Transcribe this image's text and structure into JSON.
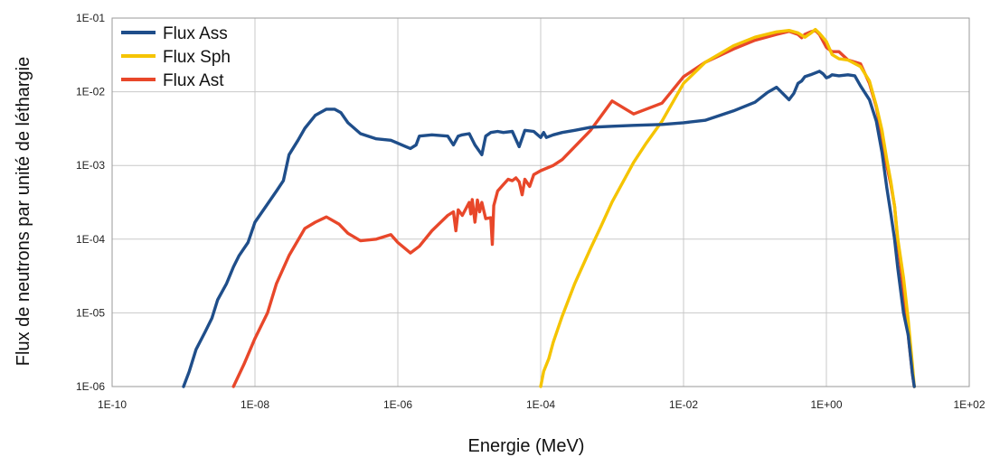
{
  "chart_data": {
    "type": "line",
    "title": "",
    "xlabel": "Energie (MeV)",
    "ylabel": "Flux de neutrons par unité de léthargie",
    "x_scale": "log",
    "y_scale": "log",
    "xlim": [
      1e-10,
      100
    ],
    "ylim": [
      1e-06,
      0.1
    ],
    "grid": true,
    "legend_position": "top-left",
    "x_ticks": [
      {
        "value": 1e-10,
        "label": "1E-10"
      },
      {
        "value": 1e-08,
        "label": "1E-08"
      },
      {
        "value": 1e-06,
        "label": "1E-06"
      },
      {
        "value": 0.0001,
        "label": "1E-04"
      },
      {
        "value": 0.01,
        "label": "1E-02"
      },
      {
        "value": 1,
        "label": "1E+00"
      },
      {
        "value": 100,
        "label": "1E+02"
      }
    ],
    "y_ticks": [
      {
        "value": 1e-06,
        "label": "1E-06"
      },
      {
        "value": 1e-05,
        "label": "1E-05"
      },
      {
        "value": 0.0001,
        "label": "1E-04"
      },
      {
        "value": 0.001,
        "label": "1E-03"
      },
      {
        "value": 0.01,
        "label": "1E-02"
      },
      {
        "value": 0.1,
        "label": "1E-01"
      }
    ],
    "series": [
      {
        "name": "Flux Ass",
        "color": "#1f4e8a",
        "x": [
          1e-09,
          1.2e-09,
          1.5e-09,
          2e-09,
          2.5e-09,
          3e-09,
          4e-09,
          5e-09,
          6e-09,
          8e-09,
          1e-08,
          1.5e-08,
          2e-08,
          2.5e-08,
          3e-08,
          4e-08,
          5e-08,
          7e-08,
          1e-07,
          1.3e-07,
          1.6e-07,
          2e-07,
          3e-07,
          5e-07,
          8e-07,
          1e-06,
          1.3e-06,
          1.5e-06,
          1.8e-06,
          2e-06,
          3e-06,
          5e-06,
          6e-06,
          7e-06,
          8e-06,
          1e-05,
          1.2e-05,
          1.5e-05,
          1.7e-05,
          1.8e-05,
          2e-05,
          2.5e-05,
          3e-05,
          4e-05,
          5e-05,
          6e-05,
          8e-05,
          0.0001,
          0.00011,
          0.00012,
          0.00015,
          0.0002,
          0.0003,
          0.0005,
          0.001,
          0.002,
          0.005,
          0.01,
          0.02,
          0.05,
          0.1,
          0.15,
          0.2,
          0.3,
          0.35,
          0.4,
          0.45,
          0.5,
          0.6,
          0.8,
          0.9,
          1,
          1.1,
          1.2,
          1.5,
          2,
          2.5,
          3,
          4,
          5,
          6,
          7,
          8,
          9,
          10,
          12,
          14,
          16,
          17
        ],
        "y": [
          1e-06,
          1.6e-06,
          3.2e-06,
          5.5e-06,
          8.5e-06,
          1.5e-05,
          2.5e-05,
          4.2e-05,
          6e-05,
          9e-05,
          0.00017,
          0.0003,
          0.00045,
          0.00062,
          0.0014,
          0.0022,
          0.0032,
          0.0048,
          0.0058,
          0.0058,
          0.0052,
          0.0038,
          0.0027,
          0.0023,
          0.0022,
          0.002,
          0.0018,
          0.0017,
          0.0019,
          0.0025,
          0.0026,
          0.0025,
          0.0019,
          0.0025,
          0.0026,
          0.0027,
          0.0019,
          0.0014,
          0.0025,
          0.0026,
          0.0028,
          0.0029,
          0.0028,
          0.0029,
          0.0018,
          0.003,
          0.0029,
          0.0024,
          0.0028,
          0.0024,
          0.0026,
          0.0028,
          0.003,
          0.0033,
          0.0034,
          0.0035,
          0.0036,
          0.0038,
          0.0041,
          0.0055,
          0.0072,
          0.0098,
          0.0115,
          0.0078,
          0.0095,
          0.013,
          0.014,
          0.016,
          0.017,
          0.019,
          0.0175,
          0.0155,
          0.016,
          0.017,
          0.0165,
          0.017,
          0.0165,
          0.012,
          0.0078,
          0.004,
          0.0015,
          0.0005,
          0.00022,
          0.0001,
          4e-05,
          1e-05,
          5e-06,
          1.5e-06,
          1e-06
        ]
      },
      {
        "name": "Flux Sph",
        "color": "#f5c400",
        "x": [
          0.0001,
          0.00011,
          0.00013,
          0.00015,
          0.0002,
          0.0003,
          0.0005,
          0.0007,
          0.001,
          0.002,
          0.003,
          0.005,
          0.01,
          0.02,
          0.05,
          0.1,
          0.2,
          0.3,
          0.4,
          0.5,
          0.6,
          0.7,
          0.8,
          1,
          1.2,
          1.5,
          2,
          3,
          4,
          5,
          6,
          7,
          8,
          9,
          10,
          12,
          14,
          16,
          17
        ],
        "y": [
          1e-06,
          1.6e-06,
          2.4e-06,
          4e-06,
          9e-06,
          2.5e-05,
          7.5e-05,
          0.00015,
          0.00032,
          0.0011,
          0.002,
          0.004,
          0.013,
          0.025,
          0.042,
          0.055,
          0.065,
          0.068,
          0.063,
          0.055,
          0.062,
          0.07,
          0.062,
          0.048,
          0.032,
          0.028,
          0.027,
          0.022,
          0.014,
          0.0065,
          0.003,
          0.0012,
          0.0006,
          0.00028,
          0.0001,
          3e-05,
          8e-06,
          2e-06,
          1e-06
        ]
      },
      {
        "name": "Flux Ast",
        "color": "#e8472a",
        "x": [
          5e-09,
          7e-09,
          1e-08,
          1.5e-08,
          2e-08,
          3e-08,
          5e-08,
          7e-08,
          1e-07,
          1.5e-07,
          2e-07,
          3e-07,
          5e-07,
          8e-07,
          1e-06,
          1.5e-06,
          2e-06,
          3e-06,
          5e-06,
          6e-06,
          6.5e-06,
          7e-06,
          8e-06,
          1e-05,
          1.05e-05,
          1.1e-05,
          1.2e-05,
          1.3e-05,
          1.4e-05,
          1.5e-05,
          1.7e-05,
          2e-05,
          2.1e-05,
          2.2e-05,
          2.5e-05,
          3e-05,
          3.5e-05,
          4e-05,
          4.5e-05,
          5e-05,
          5.5e-05,
          6e-05,
          7e-05,
          8e-05,
          0.0001,
          0.00015,
          0.0002,
          0.0005,
          0.001,
          0.002,
          0.005,
          0.01,
          0.02,
          0.05,
          0.1,
          0.2,
          0.3,
          0.4,
          0.45,
          0.5,
          0.6,
          0.7,
          0.8,
          1,
          1.2,
          1.5,
          2,
          3,
          4,
          5,
          6,
          7,
          8,
          9,
          10,
          12,
          14,
          16,
          17
        ],
        "y": [
          1e-06,
          2e-06,
          4.5e-06,
          1e-05,
          2.5e-05,
          6e-05,
          0.00014,
          0.00017,
          0.0002,
          0.00016,
          0.00012,
          9.5e-05,
          0.0001,
          0.000115,
          9e-05,
          6.5e-05,
          8e-05,
          0.00013,
          0.00021,
          0.000235,
          0.00013,
          0.00025,
          0.00021,
          0.000315,
          0.00022,
          0.000345,
          0.00017,
          0.00034,
          0.000235,
          0.000315,
          0.00019,
          0.000195,
          8.5e-05,
          0.000285,
          0.00045,
          0.00055,
          0.00065,
          0.00062,
          0.00068,
          0.0006,
          0.0004,
          0.00065,
          0.00052,
          0.00075,
          0.00085,
          0.001,
          0.0012,
          0.003,
          0.0075,
          0.005,
          0.007,
          0.016,
          0.025,
          0.038,
          0.05,
          0.06,
          0.066,
          0.06,
          0.054,
          0.06,
          0.065,
          0.068,
          0.06,
          0.04,
          0.035,
          0.035,
          0.027,
          0.024,
          0.013,
          0.0062,
          0.0025,
          0.001,
          0.00055,
          0.00028,
          9e-05,
          2e-05,
          5e-06,
          1.5e-06,
          1e-06
        ]
      }
    ]
  }
}
